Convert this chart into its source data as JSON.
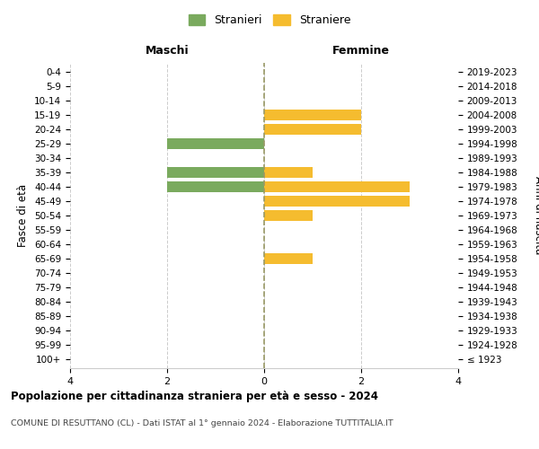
{
  "age_groups": [
    "100+",
    "95-99",
    "90-94",
    "85-89",
    "80-84",
    "75-79",
    "70-74",
    "65-69",
    "60-64",
    "55-59",
    "50-54",
    "45-49",
    "40-44",
    "35-39",
    "30-34",
    "25-29",
    "20-24",
    "15-19",
    "10-14",
    "5-9",
    "0-4"
  ],
  "birth_years": [
    "≤ 1923",
    "1924-1928",
    "1929-1933",
    "1934-1938",
    "1939-1943",
    "1944-1948",
    "1949-1953",
    "1954-1958",
    "1959-1963",
    "1964-1968",
    "1969-1973",
    "1974-1978",
    "1979-1983",
    "1984-1988",
    "1989-1993",
    "1994-1998",
    "1999-2003",
    "2004-2008",
    "2009-2013",
    "2014-2018",
    "2019-2023"
  ],
  "maschi": [
    0,
    0,
    0,
    0,
    0,
    0,
    0,
    0,
    0,
    0,
    0,
    0,
    2,
    2,
    0,
    2,
    0,
    0,
    0,
    0,
    0
  ],
  "femmine": [
    0,
    0,
    0,
    0,
    0,
    0,
    0,
    1,
    0,
    0,
    1,
    3,
    3,
    1,
    0,
    0,
    2,
    2,
    0,
    0,
    0
  ],
  "maschi_color": "#7aaa5e",
  "femmine_color": "#f5bc2f",
  "background_color": "#ffffff",
  "grid_color": "#cccccc",
  "title": "Popolazione per cittadinanza straniera per età e sesso - 2024",
  "subtitle": "COMUNE DI RESUTTANO (CL) - Dati ISTAT al 1° gennaio 2024 - Elaborazione TUTTITALIA.IT",
  "xlabel_left": "Maschi",
  "xlabel_right": "Femmine",
  "ylabel_left": "Fasce di età",
  "ylabel_right": "Anni di nascita",
  "legend_stranieri": "Stranieri",
  "legend_straniere": "Straniere",
  "xlim": 4,
  "bar_height": 0.75
}
